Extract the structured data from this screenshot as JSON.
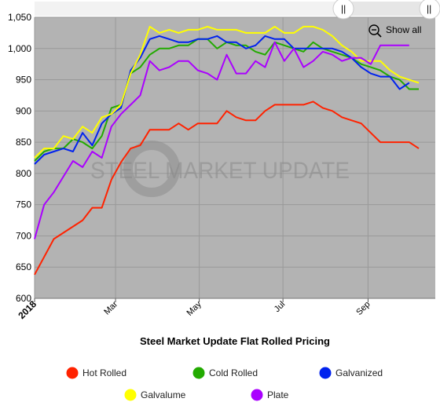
{
  "chart_data": {
    "type": "line",
    "title": "Steel Market Update Flat Rolled Pricing",
    "xlabel": "",
    "ylabel": "",
    "ylim": [
      600,
      1050
    ],
    "yticks": [
      600,
      650,
      700,
      750,
      800,
      850,
      900,
      950,
      1000,
      1050
    ],
    "ytick_labels": [
      "600",
      "650",
      "700",
      "750",
      "800",
      "850",
      "900",
      "950",
      "1,000",
      "1,050"
    ],
    "xlim": [
      "2018-01-01",
      "2018-10-20"
    ],
    "xticks": [
      {
        "label": "2018",
        "date": "2018-01-01",
        "bold": true
      },
      {
        "label": "Mar",
        "date": "2018-03-01",
        "bold": false
      },
      {
        "label": "May",
        "date": "2018-05-01",
        "bold": false
      },
      {
        "label": "Jul",
        "date": "2018-07-01",
        "bold": false
      },
      {
        "label": "Sep",
        "date": "2018-09-01",
        "bold": false
      }
    ],
    "grid": true,
    "legend_position": "bottom",
    "watermark": "STEEL MARKET UPDATE",
    "series": [
      {
        "name": "Hot Rolled",
        "color": "#ff2200",
        "points": [
          [
            "2018-01-01",
            638
          ],
          [
            "2018-01-15",
            695
          ],
          [
            "2018-02-05",
            725
          ],
          [
            "2018-02-12",
            745
          ],
          [
            "2018-02-19",
            745
          ],
          [
            "2018-02-26",
            790
          ],
          [
            "2018-03-05",
            818
          ],
          [
            "2018-03-12",
            840
          ],
          [
            "2018-03-19",
            845
          ],
          [
            "2018-03-26",
            870
          ],
          [
            "2018-04-02",
            870
          ],
          [
            "2018-04-09",
            870
          ],
          [
            "2018-04-16",
            880
          ],
          [
            "2018-04-23",
            870
          ],
          [
            "2018-04-30",
            880
          ],
          [
            "2018-05-07",
            880
          ],
          [
            "2018-05-14",
            880
          ],
          [
            "2018-05-21",
            900
          ],
          [
            "2018-05-28",
            890
          ],
          [
            "2018-06-04",
            885
          ],
          [
            "2018-06-11",
            885
          ],
          [
            "2018-06-18",
            900
          ],
          [
            "2018-06-25",
            910
          ],
          [
            "2018-07-02",
            910
          ],
          [
            "2018-07-09",
            910
          ],
          [
            "2018-07-16",
            910
          ],
          [
            "2018-07-23",
            915
          ],
          [
            "2018-07-30",
            905
          ],
          [
            "2018-08-06",
            900
          ],
          [
            "2018-08-13",
            890
          ],
          [
            "2018-08-20",
            885
          ],
          [
            "2018-08-27",
            880
          ],
          [
            "2018-09-03",
            865
          ],
          [
            "2018-09-10",
            850
          ],
          [
            "2018-09-17",
            850
          ],
          [
            "2018-09-24",
            850
          ],
          [
            "2018-10-01",
            850
          ],
          [
            "2018-10-08",
            840
          ]
        ]
      },
      {
        "name": "Cold Rolled",
        "color": "#22aa00",
        "points": [
          [
            "2018-01-01",
            820
          ],
          [
            "2018-01-08",
            835
          ],
          [
            "2018-01-15",
            840
          ],
          [
            "2018-01-22",
            840
          ],
          [
            "2018-01-29",
            855
          ],
          [
            "2018-02-05",
            850
          ],
          [
            "2018-02-12",
            840
          ],
          [
            "2018-02-19",
            860
          ],
          [
            "2018-02-26",
            905
          ],
          [
            "2018-03-05",
            910
          ],
          [
            "2018-03-12",
            960
          ],
          [
            "2018-03-19",
            970
          ],
          [
            "2018-03-26",
            990
          ],
          [
            "2018-04-02",
            1000
          ],
          [
            "2018-04-09",
            1000
          ],
          [
            "2018-04-16",
            1005
          ],
          [
            "2018-04-23",
            1005
          ],
          [
            "2018-04-30",
            1015
          ],
          [
            "2018-05-07",
            1015
          ],
          [
            "2018-05-14",
            1000
          ],
          [
            "2018-05-21",
            1010
          ],
          [
            "2018-05-28",
            1005
          ],
          [
            "2018-06-04",
            1005
          ],
          [
            "2018-06-11",
            995
          ],
          [
            "2018-06-18",
            990
          ],
          [
            "2018-06-25",
            1010
          ],
          [
            "2018-07-02",
            1005
          ],
          [
            "2018-07-09",
            1000
          ],
          [
            "2018-07-16",
            995
          ],
          [
            "2018-07-23",
            1010
          ],
          [
            "2018-07-30",
            1000
          ],
          [
            "2018-08-06",
            995
          ],
          [
            "2018-08-13",
            990
          ],
          [
            "2018-08-20",
            985
          ],
          [
            "2018-08-27",
            975
          ],
          [
            "2018-09-03",
            970
          ],
          [
            "2018-09-10",
            965
          ],
          [
            "2018-09-17",
            955
          ],
          [
            "2018-09-24",
            950
          ],
          [
            "2018-10-01",
            935
          ],
          [
            "2018-10-08",
            935
          ]
        ]
      },
      {
        "name": "Galvanized",
        "color": "#0022ee",
        "points": [
          [
            "2018-01-01",
            815
          ],
          [
            "2018-01-08",
            830
          ],
          [
            "2018-01-15",
            835
          ],
          [
            "2018-01-22",
            840
          ],
          [
            "2018-01-29",
            835
          ],
          [
            "2018-02-05",
            865
          ],
          [
            "2018-02-12",
            845
          ],
          [
            "2018-02-19",
            880
          ],
          [
            "2018-02-26",
            895
          ],
          [
            "2018-03-05",
            905
          ],
          [
            "2018-03-12",
            965
          ],
          [
            "2018-03-19",
            985
          ],
          [
            "2018-03-26",
            1015
          ],
          [
            "2018-04-02",
            1020
          ],
          [
            "2018-04-09",
            1015
          ],
          [
            "2018-04-16",
            1010
          ],
          [
            "2018-04-23",
            1010
          ],
          [
            "2018-04-30",
            1015
          ],
          [
            "2018-05-07",
            1015
          ],
          [
            "2018-05-14",
            1020
          ],
          [
            "2018-05-21",
            1010
          ],
          [
            "2018-05-28",
            1010
          ],
          [
            "2018-06-04",
            1000
          ],
          [
            "2018-06-11",
            1005
          ],
          [
            "2018-06-18",
            1020
          ],
          [
            "2018-06-25",
            1015
          ],
          [
            "2018-07-02",
            1015
          ],
          [
            "2018-07-09",
            1000
          ],
          [
            "2018-07-16",
            1000
          ],
          [
            "2018-07-23",
            1000
          ],
          [
            "2018-07-30",
            1000
          ],
          [
            "2018-08-06",
            1000
          ],
          [
            "2018-08-13",
            995
          ],
          [
            "2018-08-20",
            985
          ],
          [
            "2018-08-27",
            970
          ],
          [
            "2018-09-03",
            960
          ],
          [
            "2018-09-10",
            955
          ],
          [
            "2018-09-17",
            955
          ],
          [
            "2018-09-24",
            935
          ],
          [
            "2018-10-01",
            945
          ]
        ]
      },
      {
        "name": "Galvalume",
        "color": "#ffff00",
        "points": [
          [
            "2018-01-01",
            825
          ],
          [
            "2018-01-08",
            840
          ],
          [
            "2018-01-15",
            840
          ],
          [
            "2018-01-22",
            860
          ],
          [
            "2018-01-29",
            855
          ],
          [
            "2018-02-05",
            875
          ],
          [
            "2018-02-12",
            865
          ],
          [
            "2018-02-19",
            890
          ],
          [
            "2018-02-26",
            895
          ],
          [
            "2018-03-05",
            910
          ],
          [
            "2018-03-12",
            960
          ],
          [
            "2018-03-19",
            990
          ],
          [
            "2018-03-26",
            1035
          ],
          [
            "2018-04-02",
            1025
          ],
          [
            "2018-04-09",
            1030
          ],
          [
            "2018-04-16",
            1025
          ],
          [
            "2018-04-23",
            1030
          ],
          [
            "2018-04-30",
            1030
          ],
          [
            "2018-05-07",
            1035
          ],
          [
            "2018-05-14",
            1030
          ],
          [
            "2018-05-21",
            1030
          ],
          [
            "2018-05-28",
            1030
          ],
          [
            "2018-06-04",
            1025
          ],
          [
            "2018-06-11",
            1025
          ],
          [
            "2018-06-18",
            1025
          ],
          [
            "2018-06-25",
            1035
          ],
          [
            "2018-07-02",
            1025
          ],
          [
            "2018-07-09",
            1025
          ],
          [
            "2018-07-16",
            1035
          ],
          [
            "2018-07-23",
            1035
          ],
          [
            "2018-07-30",
            1030
          ],
          [
            "2018-08-06",
            1020
          ],
          [
            "2018-08-13",
            1005
          ],
          [
            "2018-08-20",
            995
          ],
          [
            "2018-08-27",
            980
          ],
          [
            "2018-09-03",
            980
          ],
          [
            "2018-09-10",
            980
          ],
          [
            "2018-09-17",
            965
          ],
          [
            "2018-09-24",
            955
          ],
          [
            "2018-10-01",
            950
          ],
          [
            "2018-10-08",
            945
          ]
        ]
      },
      {
        "name": "Plate",
        "color": "#aa00ff",
        "points": [
          [
            "2018-01-01",
            695
          ],
          [
            "2018-01-08",
            750
          ],
          [
            "2018-01-15",
            770
          ],
          [
            "2018-01-22",
            795
          ],
          [
            "2018-01-29",
            820
          ],
          [
            "2018-02-05",
            810
          ],
          [
            "2018-02-12",
            835
          ],
          [
            "2018-02-19",
            825
          ],
          [
            "2018-02-26",
            875
          ],
          [
            "2018-03-05",
            895
          ],
          [
            "2018-03-12",
            910
          ],
          [
            "2018-03-19",
            925
          ],
          [
            "2018-03-26",
            980
          ],
          [
            "2018-04-02",
            965
          ],
          [
            "2018-04-09",
            970
          ],
          [
            "2018-04-16",
            980
          ],
          [
            "2018-04-23",
            980
          ],
          [
            "2018-04-30",
            965
          ],
          [
            "2018-05-07",
            960
          ],
          [
            "2018-05-14",
            950
          ],
          [
            "2018-05-21",
            990
          ],
          [
            "2018-05-28",
            960
          ],
          [
            "2018-06-04",
            960
          ],
          [
            "2018-06-11",
            980
          ],
          [
            "2018-06-18",
            970
          ],
          [
            "2018-06-25",
            1010
          ],
          [
            "2018-07-02",
            980
          ],
          [
            "2018-07-09",
            1000
          ],
          [
            "2018-07-16",
            970
          ],
          [
            "2018-07-23",
            980
          ],
          [
            "2018-07-30",
            995
          ],
          [
            "2018-08-06",
            990
          ],
          [
            "2018-08-13",
            980
          ],
          [
            "2018-08-20",
            985
          ],
          [
            "2018-08-27",
            985
          ],
          [
            "2018-09-03",
            975
          ],
          [
            "2018-09-10",
            1005
          ],
          [
            "2018-09-17",
            1005
          ],
          [
            "2018-09-24",
            1005
          ],
          [
            "2018-10-01",
            1005
          ]
        ]
      }
    ]
  },
  "controls": {
    "show_all_label": "Show all",
    "zoom_icon": "zoom-out-magnifier-icon",
    "scrollbar_left_grip": "||",
    "scrollbar_right_grip": "||"
  },
  "colors": {
    "plot_background": "#b3b3b3",
    "grid": "#9a9a9a",
    "navigator": "#e6e6e6"
  }
}
